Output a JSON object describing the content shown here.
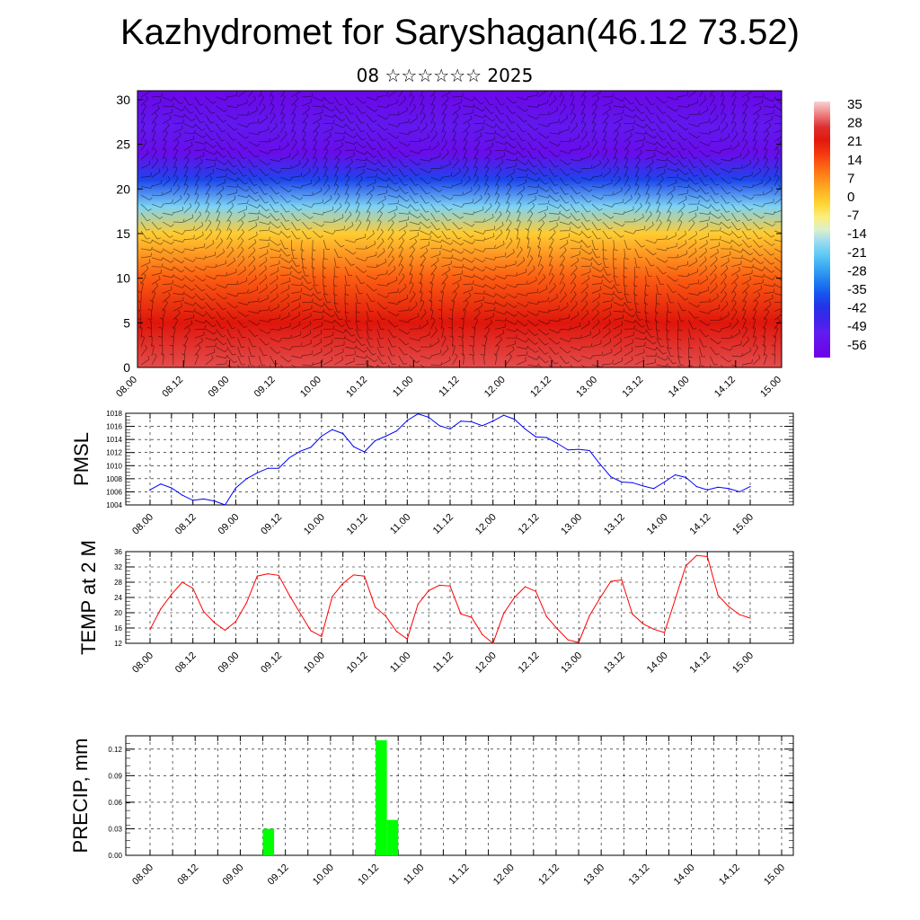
{
  "header": {
    "title": "Kazhydromet for Saryshagan(46.12 73.52)",
    "subtitle": "08 ☆☆☆☆☆☆ 2025"
  },
  "chart_data": [
    {
      "type": "heatmap",
      "title": "Kazhydromet for Saryshagan(46.12 73.52)",
      "subtitle": "08 ☆☆☆☆☆☆ 2025",
      "description_series": "temperature cross-section with wind barbs",
      "x_ticks": [
        "08.00",
        "08.12",
        "09.00",
        "09.12",
        "10.00",
        "10.12",
        "11.00",
        "11.12",
        "12.00",
        "12.12",
        "13.00",
        "13.12",
        "14.00",
        "14.12",
        "15.00"
      ],
      "y_ticks": [
        0,
        5,
        10,
        15,
        20,
        25,
        30
      ],
      "ylim": [
        0,
        31
      ],
      "colorbar": {
        "labels": [
          "35",
          "28",
          "21",
          "14",
          "7",
          "0",
          "-7",
          "-14",
          "-21",
          "-28",
          "-35",
          "-42",
          "-49",
          "-56"
        ],
        "range": [
          -60,
          38
        ]
      },
      "level_temperatures": [
        {
          "level": 0,
          "value": 30
        },
        {
          "level": 5,
          "value": 24
        },
        {
          "level": 10,
          "value": 14
        },
        {
          "level": 15,
          "value": 0
        },
        {
          "level": 18,
          "value": -18
        },
        {
          "level": 21,
          "value": -38
        },
        {
          "level": 24,
          "value": -56
        },
        {
          "level": 27,
          "value": -52
        },
        {
          "level": 31,
          "value": -58
        }
      ]
    },
    {
      "type": "line",
      "ylabel": "PMSL",
      "ylim": [
        1004,
        1018
      ],
      "y_ticks": [
        1004,
        1006,
        1008,
        1010,
        1012,
        1014,
        1016,
        1018
      ],
      "x_ticks": [
        "08.00",
        "08.12",
        "09.00",
        "09.12",
        "10.00",
        "10.12",
        "11.00",
        "11.12",
        "12.00",
        "12.12",
        "13.00",
        "13.12",
        "14.00",
        "14.12",
        "15.00"
      ],
      "color": "#0000ff",
      "grid": true,
      "x": [
        0,
        3,
        6,
        9,
        12,
        15,
        18,
        21,
        24,
        27,
        30,
        33,
        36,
        39,
        42,
        45,
        48,
        51,
        54,
        57,
        60,
        63,
        66,
        69,
        72,
        75,
        78,
        81,
        84,
        87,
        90,
        93,
        96,
        99,
        102,
        105,
        108,
        111,
        114,
        117,
        120,
        123,
        126,
        129,
        132,
        135,
        138,
        141,
        144,
        147,
        150,
        153,
        156,
        159,
        162,
        165,
        168
      ],
      "values": [
        1006.3,
        1007.2,
        1006.6,
        1005.5,
        1004.7,
        1004.9,
        1004.6,
        1004.0,
        1006.6,
        1008.0,
        1008.9,
        1009.6,
        1009.6,
        1011.2,
        1012.2,
        1012.8,
        1014.5,
        1015.5,
        1014.9,
        1012.9,
        1012.1,
        1013.8,
        1014.5,
        1015.3,
        1016.9,
        1017.9,
        1017.4,
        1016.1,
        1015.6,
        1016.8,
        1016.7,
        1016.1,
        1016.8,
        1017.7,
        1017.1,
        1015.6,
        1014.4,
        1014.3,
        1013.4,
        1012.4,
        1012.5,
        1012.3,
        1010.2,
        1008.3,
        1007.5,
        1007.4,
        1006.9,
        1006.5,
        1007.5,
        1008.6,
        1008.2,
        1006.8,
        1006.3,
        1006.7,
        1006.5,
        1006.0,
        1006.8
      ]
    },
    {
      "type": "line",
      "ylabel": "TEMP at 2 M",
      "ylim": [
        12,
        36
      ],
      "y_ticks": [
        12,
        16,
        20,
        24,
        28,
        32,
        36
      ],
      "x_ticks": [
        "08.00",
        "08.12",
        "09.00",
        "09.12",
        "10.00",
        "10.12",
        "11.00",
        "11.12",
        "12.00",
        "12.12",
        "13.00",
        "13.12",
        "14.00",
        "14.12",
        "15.00"
      ],
      "color": "#ff0000",
      "grid": true,
      "x": [
        0,
        3,
        6,
        9,
        12,
        15,
        18,
        21,
        24,
        27,
        30,
        33,
        36,
        39,
        42,
        45,
        48,
        51,
        54,
        57,
        60,
        63,
        66,
        69,
        72,
        75,
        78,
        81,
        84,
        87,
        90,
        93,
        96,
        99,
        102,
        105,
        108,
        111,
        114,
        117,
        120,
        123,
        126,
        129,
        132,
        135,
        138,
        141,
        144,
        147,
        150,
        153,
        156,
        159,
        162,
        165,
        168
      ],
      "values": [
        15.6,
        21.0,
        24.8,
        28.0,
        26.4,
        20.3,
        17.4,
        15.4,
        17.7,
        22.6,
        29.6,
        30.2,
        29.8,
        24.6,
        19.9,
        15.3,
        13.8,
        24.2,
        27.7,
        29.9,
        29.6,
        21.5,
        19.1,
        15.1,
        13.1,
        22.2,
        25.8,
        27.2,
        27.0,
        19.7,
        18.8,
        14.3,
        12.0,
        19.8,
        24.0,
        26.8,
        25.6,
        19.0,
        15.8,
        12.9,
        12.2,
        19.2,
        23.9,
        28.2,
        28.6,
        19.7,
        17.1,
        15.7,
        14.8,
        23.5,
        32.3,
        35.0,
        34.7,
        24.6,
        21.6,
        19.5,
        18.6
      ]
    },
    {
      "type": "bar",
      "ylabel": "PRECIP, mm",
      "ylim": [
        0,
        0.135
      ],
      "y_ticks": [
        "0.00",
        "0.03",
        "0.06",
        "0.09",
        "0.12"
      ],
      "x_ticks": [
        "08.00",
        "08.12",
        "09.00",
        "09.12",
        "10.00",
        "10.12",
        "11.00",
        "11.12",
        "12.00",
        "12.12",
        "13.00",
        "13.12",
        "14.00",
        "14.12",
        "15.00"
      ],
      "color": "#00ff00",
      "grid": true,
      "x": [
        30,
        60,
        63
      ],
      "values": [
        0.03,
        0.13,
        0.04
      ]
    }
  ]
}
